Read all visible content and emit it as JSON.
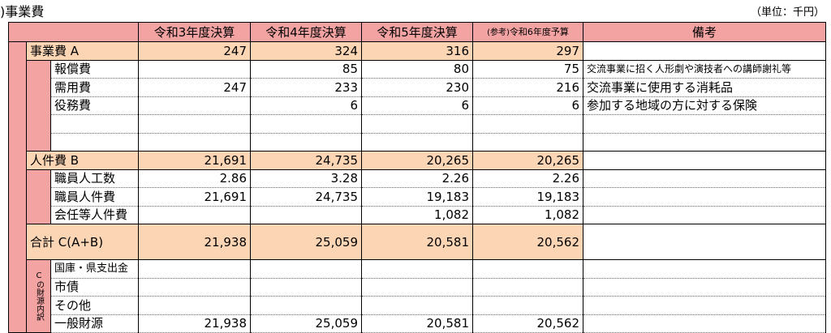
{
  "header": {
    "title": ")事業費",
    "unit": "（単位：千円）"
  },
  "table": {
    "columns": [
      "令和3年度決算",
      "令和4年度決算",
      "令和5年度決算",
      {
        "prefix": "(参考)",
        "text": "令和6年度予算"
      },
      "備考"
    ],
    "sections": [
      {
        "label": "事業費 A",
        "values": [
          "247",
          "324",
          "316",
          "297"
        ],
        "items": [
          {
            "label": "報償費",
            "values": [
              null,
              "85",
              "80",
              "75"
            ],
            "note": "交流事業に招く人形劇や演技者への講師謝礼等"
          },
          {
            "label": "需用費",
            "values": [
              "247",
              "233",
              "230",
              "216"
            ],
            "note": "交流事業に使用する消耗品"
          },
          {
            "label": "役務費",
            "values": [
              null,
              "6",
              "6",
              "6"
            ],
            "note": "参加する地域の方に対する保険"
          },
          null,
          null
        ]
      },
      {
        "label": "人件費 B",
        "values": [
          "21,691",
          "24,735",
          "20,265",
          "20,265"
        ],
        "items": [
          {
            "label": "職員人工数",
            "values": [
              "2.86",
              "3.28",
              "2.26",
              "2.26"
            ]
          },
          {
            "label": "職員人件費",
            "values": [
              "21,691",
              "24,735",
              "19,183",
              "19,183"
            ]
          },
          {
            "label": "会任等人件費",
            "values": [
              null,
              null,
              "1,082",
              "1,082"
            ]
          }
        ]
      },
      {
        "label": "合計 C(A+B)",
        "values": [
          "21,938",
          "25,059",
          "20,581",
          "20,562"
        ],
        "items": []
      }
    ],
    "funding": {
      "label": "Cの財源内訳",
      "items": [
        {
          "label": "国庫・県支出金",
          "values": [
            null,
            null,
            null,
            null
          ]
        },
        {
          "label": "市債",
          "values": [
            null,
            null,
            null,
            null
          ]
        },
        {
          "label": "その他",
          "values": [
            null,
            null,
            null,
            null
          ]
        },
        {
          "label": "一般財源",
          "values": [
            "21,938",
            "25,059",
            "20,581",
            "20,562"
          ]
        }
      ]
    }
  }
}
